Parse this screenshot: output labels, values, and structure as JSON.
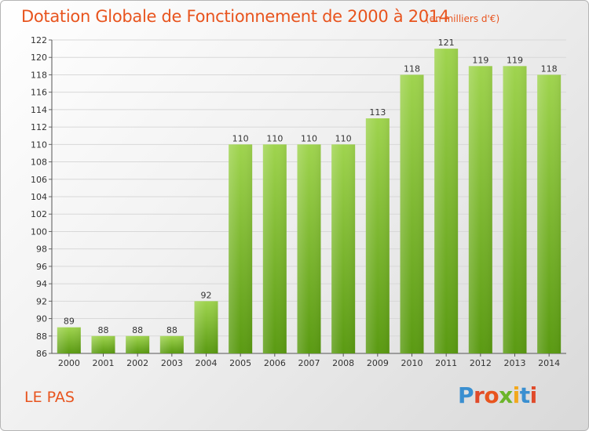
{
  "header": {
    "title": "Dotation Globale de Fonctionnement de 2000 à 2014",
    "subtitle": "(en milliers d'€)"
  },
  "footer": {
    "commune": "LE PAS",
    "brand": "Proxiti",
    "brand_colors": [
      "#3a8fd0",
      "#e04a2a",
      "#e8541e",
      "#6bb52a",
      "#f2a81d",
      "#3a8fd0",
      "#e04a2a"
    ]
  },
  "colors": {
    "accent": "#e8541e",
    "bar_top": "#9fd44e",
    "bar_bottom": "#5a9a12",
    "grid": "#d8d8d8"
  },
  "chart_data": {
    "type": "bar",
    "title": "Dotation Globale de Fonctionnement de 2000 à 2014",
    "subtitle": "(en milliers d'€)",
    "categories": [
      "2000",
      "2001",
      "2002",
      "2003",
      "2004",
      "2005",
      "2006",
      "2007",
      "2008",
      "2009",
      "2010",
      "2011",
      "2012",
      "2013",
      "2014"
    ],
    "values": [
      89,
      88,
      88,
      88,
      92,
      110,
      110,
      110,
      110,
      113,
      118,
      121,
      119,
      119,
      118
    ],
    "ylim": [
      86,
      122
    ],
    "yticks": [
      86,
      88,
      90,
      92,
      94,
      96,
      98,
      100,
      102,
      104,
      106,
      108,
      110,
      112,
      114,
      116,
      118,
      120,
      122
    ],
    "grid": true,
    "xlabel": "",
    "ylabel": ""
  }
}
